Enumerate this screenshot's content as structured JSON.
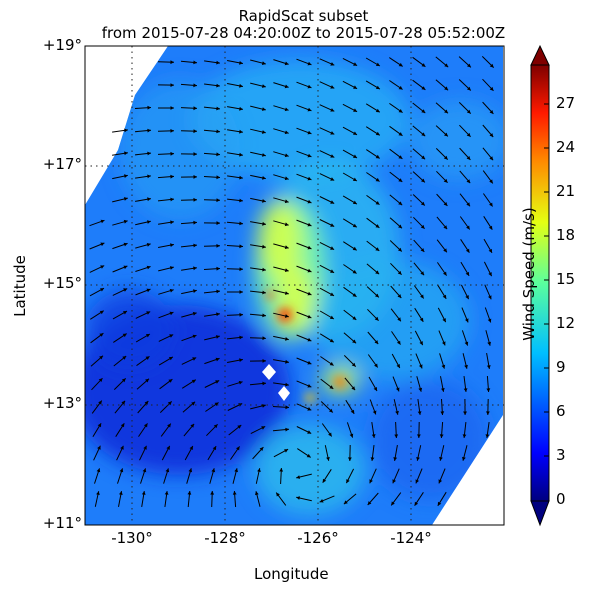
{
  "title": {
    "line1": "RapidScat subset",
    "line2": "from 2015-07-28 04:20:00Z to 2015-07-28 05:52:00Z"
  },
  "axes": {
    "xlabel": "Longitude",
    "ylabel": "Latitude",
    "xticks": [
      "-130°",
      "-128°",
      "-126°",
      "-124°"
    ],
    "yticks": [
      "+19°",
      "+17°",
      "+15°",
      "+13°",
      "+11°"
    ]
  },
  "colorbar": {
    "label": "Wind Speed (m/s)",
    "ticks": [
      "27",
      "24",
      "21",
      "18",
      "15",
      "12",
      "9",
      "6",
      "3",
      "0"
    ],
    "range": [
      0,
      30
    ]
  },
  "map_extent": {
    "lon": [
      -131,
      -122
    ],
    "lat": [
      11,
      19
    ]
  },
  "colors": {
    "low": "#00007f",
    "mid": "#1e90ff",
    "high": "#ffd700",
    "max": "#7f0000"
  }
}
